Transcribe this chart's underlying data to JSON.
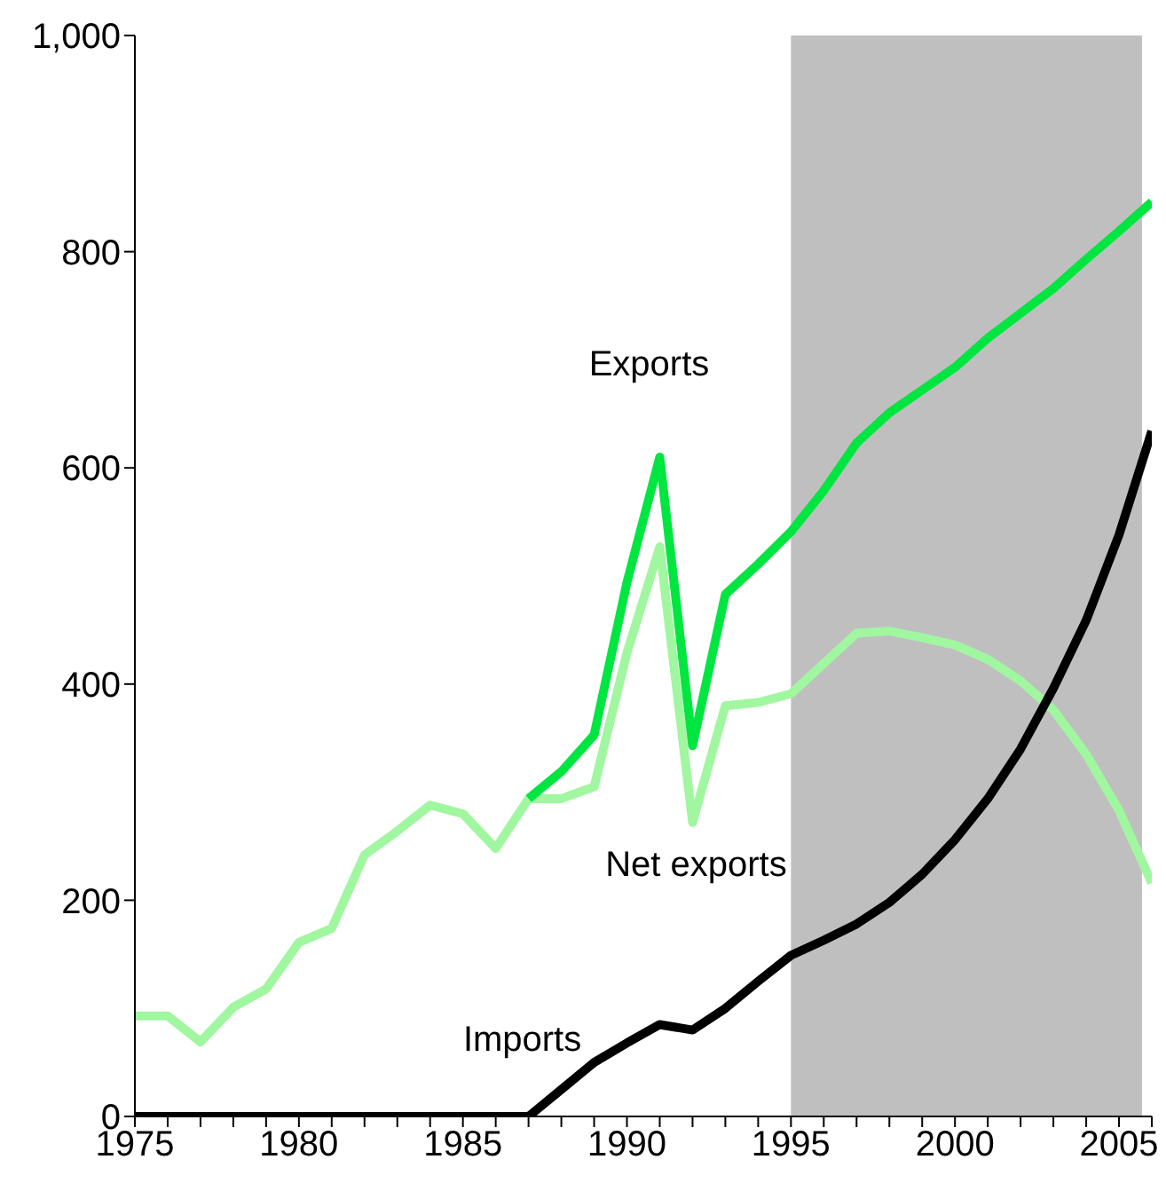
{
  "chart_data": {
    "type": "line",
    "x": [
      1975,
      1976,
      1977,
      1978,
      1979,
      1980,
      1981,
      1982,
      1983,
      1984,
      1985,
      1986,
      1987,
      1988,
      1989,
      1990,
      1991,
      1992,
      1993,
      1994,
      1995,
      1996,
      1997,
      1998,
      1999,
      2000,
      2001,
      2002,
      2003,
      2004,
      2005,
      2006
    ],
    "series": [
      {
        "name": "Net exports",
        "color": "#a0f7a0",
        "values": [
          93,
          93,
          69,
          101,
          118,
          161,
          174,
          242,
          264,
          288,
          280,
          248,
          294,
          294,
          305,
          429,
          527,
          272,
          380,
          383,
          391,
          419,
          447,
          449,
          443,
          436,
          423,
          403,
          376,
          335,
          283,
          216
        ]
      },
      {
        "name": "Exports",
        "color": "#00e640",
        "values": [
          null,
          null,
          null,
          null,
          null,
          null,
          null,
          null,
          null,
          null,
          null,
          null,
          294,
          319,
          353,
          494,
          610,
          343,
          483,
          511,
          541,
          579,
          623,
          651,
          672,
          693,
          720,
          743,
          766,
          793,
          819,
          846
        ]
      },
      {
        "name": "Imports",
        "color": "#000000",
        "values": [
          0,
          0,
          0,
          0,
          0,
          0,
          0,
          0,
          0,
          0,
          0,
          0,
          0,
          25,
          50,
          68,
          85,
          80,
          100,
          125,
          149,
          163,
          178,
          198,
          224,
          256,
          294,
          340,
          396,
          459,
          538,
          634
        ]
      }
    ],
    "bands": [
      {
        "axis": "x",
        "from": 1995,
        "to": 2005.7,
        "color": "#bfbfbf"
      }
    ],
    "xlim": [
      1975,
      2006
    ],
    "xticks": [
      1975,
      {
        "value": 1976,
        "label": null
      },
      {
        "value": 1977,
        "label": null
      },
      {
        "value": 1978,
        "label": null
      },
      {
        "value": 1979,
        "label": null
      },
      1980,
      {
        "value": 1981,
        "label": null
      },
      {
        "value": 1982,
        "label": null
      },
      {
        "value": 1983,
        "label": null
      },
      {
        "value": 1984,
        "label": null
      },
      1985,
      {
        "value": 1986,
        "label": null
      },
      {
        "value": 1987,
        "label": null
      },
      {
        "value": 1988,
        "label": null
      },
      {
        "value": 1989,
        "label": null
      },
      1990,
      {
        "value": 1991,
        "label": null
      },
      {
        "value": 1992,
        "label": null
      },
      {
        "value": 1993,
        "label": null
      },
      {
        "value": 1994,
        "label": null
      },
      1995,
      {
        "value": 1996,
        "label": null
      },
      {
        "value": 1997,
        "label": null
      },
      {
        "value": 1998,
        "label": null
      },
      {
        "value": 1999,
        "label": null
      },
      2000,
      {
        "value": 2001,
        "label": null
      },
      {
        "value": 2002,
        "label": null
      },
      {
        "value": 2003,
        "label": null
      },
      {
        "value": 2004,
        "label": null
      },
      2005,
      {
        "value": 2006,
        "label": null
      }
    ],
    "ylim": [
      0,
      1000
    ],
    "yticks": [
      0,
      200,
      400,
      600,
      800,
      {
        "value": 1000,
        "label": "1,000"
      }
    ],
    "grid": false,
    "legend": false,
    "marker": "none",
    "line_style": "solid"
  }
}
